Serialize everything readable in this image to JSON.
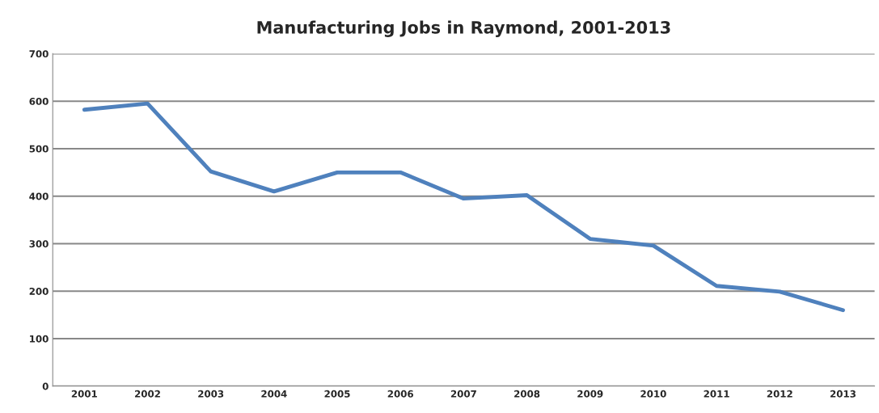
{
  "chart_data": {
    "type": "line",
    "title": "Manufacturing Jobs in Raymond, 2001-2013",
    "categories": [
      "2001",
      "2002",
      "2003",
      "2004",
      "2005",
      "2006",
      "2007",
      "2008",
      "2009",
      "2010",
      "2011",
      "2012",
      "2013"
    ],
    "series": [
      {
        "color": "#4f81bd",
        "values": [
          582,
          595,
          452,
          410,
          450,
          450,
          395,
          402,
          310,
          296,
          211,
          199,
          160
        ]
      }
    ],
    "ylim": [
      0,
      700
    ],
    "yticks": [
      0,
      100,
      200,
      300,
      400,
      500,
      600,
      700
    ],
    "grid": "y",
    "legend": false,
    "marker": "none",
    "line_style": "solid"
  }
}
